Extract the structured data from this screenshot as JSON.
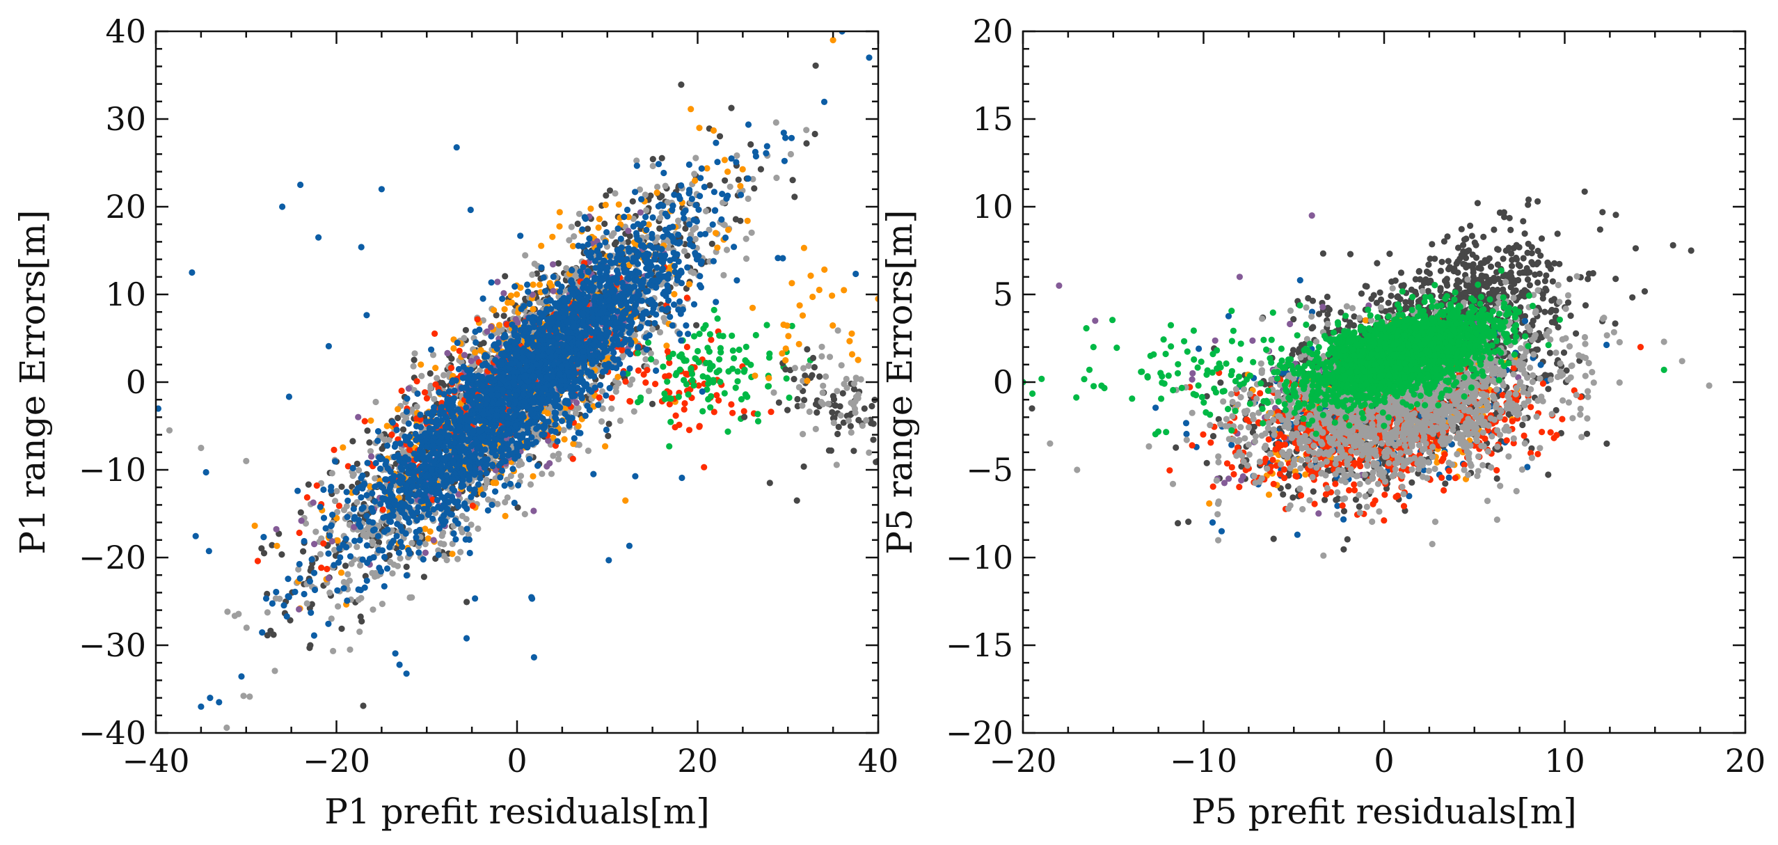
{
  "figure": {
    "colors": {
      "blue": "#0C5DA5",
      "orange": "#FF9500",
      "purple": "#845B97",
      "green": "#00B945",
      "red": "#FF2C00",
      "gray": "#9E9E9E",
      "darkgray": "#474747"
    }
  },
  "chart_data": [
    {
      "type": "scatter",
      "title": "",
      "xlabel": "P1 prefit residuals[m]",
      "ylabel": "P1 range Errors[m]",
      "xlim": [
        -40,
        40
      ],
      "ylim": [
        -40,
        40
      ],
      "xticks": [
        -40,
        -20,
        0,
        20,
        40
      ],
      "yticks": [
        -40,
        -30,
        -20,
        -10,
        0,
        10,
        20,
        30,
        40
      ],
      "xtick_labels": [
        "−40",
        "−20",
        "0",
        "20",
        "40"
      ],
      "ytick_labels": [
        "−40",
        "−30",
        "−20",
        "−10",
        "0",
        "10",
        "20",
        "30",
        "40"
      ],
      "grid": false,
      "legend": "none",
      "clusters": [
        {
          "color": "darkgray",
          "n": 900,
          "cx": 0,
          "cy": 0,
          "sx": 11,
          "sy": 11,
          "rho": 0.88
        },
        {
          "color": "gray",
          "n": 1600,
          "cx": 0,
          "cy": -1,
          "sx": 10,
          "sy": 10,
          "rho": 0.86
        },
        {
          "color": "orange",
          "n": 500,
          "cx": 1,
          "cy": 1,
          "sx": 10,
          "sy": 10,
          "rho": 0.86
        },
        {
          "color": "purple",
          "n": 200,
          "cx": 0,
          "cy": 0,
          "sx": 9,
          "sy": 9,
          "rho": 0.85
        },
        {
          "color": "red",
          "n": 220,
          "cx": -2,
          "cy": -1,
          "sx": 8,
          "sy": 6,
          "rho": 0.8
        },
        {
          "color": "red",
          "n": 60,
          "cx": 18,
          "cy": 0,
          "sx": 4,
          "sy": 3,
          "rho": 0.0
        },
        {
          "color": "green",
          "n": 110,
          "cx": 22,
          "cy": 1,
          "sx": 4,
          "sy": 3,
          "rho": 0.1
        },
        {
          "color": "darkgray",
          "n": 70,
          "cx": 36,
          "cy": -3,
          "sx": 3,
          "sy": 3,
          "rho": -0.3
        },
        {
          "color": "gray",
          "n": 50,
          "cx": 36,
          "cy": -2,
          "sx": 3,
          "sy": 3,
          "rho": -0.3
        },
        {
          "color": "orange",
          "n": 30,
          "cx": 33,
          "cy": 7,
          "sx": 4,
          "sy": 4,
          "rho": 0.0
        },
        {
          "color": "blue",
          "n": 2600,
          "cx": 1,
          "cy": 0,
          "sx": 9,
          "sy": 9,
          "rho": 0.9
        },
        {
          "color": "blue",
          "n": 80,
          "cx": 0,
          "cy": 0,
          "sx": 20,
          "sy": 20,
          "rho": 0.6
        }
      ],
      "points": [
        {
          "x": -36,
          "y": 12.5,
          "color": "blue"
        },
        {
          "x": -24,
          "y": 22.5,
          "color": "blue"
        },
        {
          "x": -15,
          "y": 22,
          "color": "blue"
        },
        {
          "x": -26,
          "y": 20,
          "color": "blue"
        },
        {
          "x": -22,
          "y": 16.5,
          "color": "blue"
        },
        {
          "x": -35,
          "y": -37,
          "color": "blue"
        },
        {
          "x": -34,
          "y": -36,
          "color": "blue"
        },
        {
          "x": -33,
          "y": -36.5,
          "color": "blue"
        },
        {
          "x": 36,
          "y": 40,
          "color": "blue"
        },
        {
          "x": 39,
          "y": 37,
          "color": "blue"
        },
        {
          "x": 35,
          "y": 39,
          "color": "orange"
        },
        {
          "x": 12,
          "y": -13.5,
          "color": "orange"
        },
        {
          "x": -38.5,
          "y": -5.5,
          "color": "gray"
        },
        {
          "x": -35,
          "y": -7.5,
          "color": "gray"
        },
        {
          "x": -30,
          "y": -9,
          "color": "gray"
        },
        {
          "x": -18.5,
          "y": -30.5,
          "color": "gray"
        },
        {
          "x": 31,
          "y": -13.5,
          "color": "darkgray"
        },
        {
          "x": 28,
          "y": -11.5,
          "color": "darkgray"
        },
        {
          "x": 40,
          "y": 9.5,
          "color": "orange"
        }
      ]
    },
    {
      "type": "scatter",
      "title": "",
      "xlabel": "P5 prefit residuals[m]",
      "ylabel": "P5 range Errors[m]",
      "xlim": [
        -20,
        20
      ],
      "ylim": [
        -20,
        20
      ],
      "xticks": [
        -20,
        -10,
        0,
        10,
        20
      ],
      "yticks": [
        -20,
        -15,
        -10,
        -5,
        0,
        5,
        10,
        15,
        20
      ],
      "xtick_labels": [
        "−20",
        "−10",
        "0",
        "10",
        "20"
      ],
      "ytick_labels": [
        "−20",
        "−15",
        "−10",
        "−5",
        "0",
        "5",
        "10",
        "15",
        "20"
      ],
      "grid": false,
      "legend": "none",
      "clusters": [
        {
          "color": "darkgray",
          "n": 1400,
          "cx": 1.5,
          "cy": 0.5,
          "sx": 4,
          "sy": 3,
          "rho": 0.45
        },
        {
          "color": "darkgray",
          "n": 350,
          "cx": 5,
          "cy": 4.5,
          "sx": 2.2,
          "sy": 2,
          "rho": 0.3
        },
        {
          "color": "blue",
          "n": 260,
          "cx": 0,
          "cy": -1.5,
          "sx": 4,
          "sy": 2.2,
          "rho": 0.3
        },
        {
          "color": "orange",
          "n": 200,
          "cx": 0.5,
          "cy": -1.5,
          "sx": 3.5,
          "sy": 2,
          "rho": 0.3
        },
        {
          "color": "purple",
          "n": 90,
          "cx": -2,
          "cy": 0,
          "sx": 5,
          "sy": 2.5,
          "rho": 0.3
        },
        {
          "color": "red",
          "n": 700,
          "cx": 0,
          "cy": -2.5,
          "sx": 3.8,
          "sy": 1.8,
          "rho": 0.25
        },
        {
          "color": "gray",
          "n": 1800,
          "cx": 1,
          "cy": -1,
          "sx": 4,
          "sy": 2.3,
          "rho": 0.35
        },
        {
          "color": "green",
          "n": 2200,
          "cx": 1,
          "cy": 1.5,
          "sx": 2.6,
          "sy": 1.3,
          "rho": 0.55
        },
        {
          "color": "green",
          "n": 120,
          "cx": -8,
          "cy": 0.5,
          "sx": 5,
          "sy": 1.6,
          "rho": 0.2
        }
      ],
      "points": [
        {
          "x": -9.5,
          "y": -8,
          "color": "blue"
        },
        {
          "x": -9,
          "y": -8.5,
          "color": "blue"
        },
        {
          "x": -4.8,
          "y": -8.7,
          "color": "blue"
        },
        {
          "x": 18,
          "y": -0.2,
          "color": "gray"
        },
        {
          "x": 17,
          "y": 7.5,
          "color": "darkgray"
        },
        {
          "x": 16,
          "y": 7.8,
          "color": "darkgray"
        },
        {
          "x": 15.5,
          "y": 2.3,
          "color": "gray"
        },
        {
          "x": 16.5,
          "y": 1.2,
          "color": "gray"
        },
        {
          "x": 14.2,
          "y": 2,
          "color": "red"
        },
        {
          "x": 15.5,
          "y": 0.7,
          "color": "green"
        },
        {
          "x": -18,
          "y": 5.5,
          "color": "purple"
        },
        {
          "x": -16,
          "y": 3.5,
          "color": "purple"
        },
        {
          "x": -8,
          "y": 6,
          "color": "purple"
        },
        {
          "x": -4,
          "y": 9.5,
          "color": "purple"
        },
        {
          "x": -19.5,
          "y": -1.5,
          "color": "darkgray"
        },
        {
          "x": -18.5,
          "y": -3.5,
          "color": "gray"
        },
        {
          "x": -17,
          "y": -5,
          "color": "gray"
        },
        {
          "x": -20,
          "y": 0,
          "color": "green"
        },
        {
          "x": 8.5,
          "y": 10.3,
          "color": "darkgray"
        },
        {
          "x": 8,
          "y": 10.4,
          "color": "darkgray"
        }
      ]
    }
  ]
}
